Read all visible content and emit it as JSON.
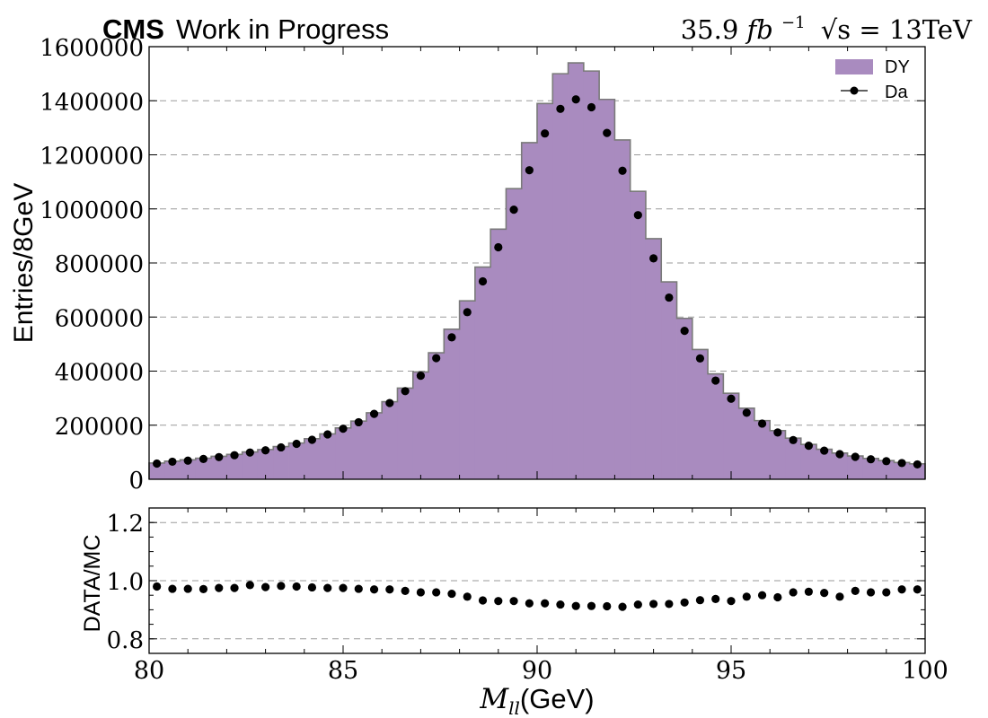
{
  "header": {
    "experiment": "CMS",
    "status": "Work in Progress",
    "lumi": "35.9",
    "lumi_unit": "fb",
    "lumi_exp": "−1",
    "energy": "√s = 13TeV"
  },
  "colors": {
    "mc_fill": "#a98bbf",
    "mc_edge": "#7a7a7a",
    "data_marker": "#000000",
    "grid": "#9a9a9a"
  },
  "chart_data": [
    {
      "type": "bar",
      "panel": "main",
      "xlabel": "M_ll(GeV)",
      "ylabel": "Entries/8GeV",
      "xlim": [
        80,
        100
      ],
      "ylim": [
        0,
        1600000
      ],
      "yticks": [
        0,
        200000,
        400000,
        600000,
        800000,
        1000000,
        1200000,
        1400000,
        1600000
      ],
      "ytick_labels": [
        "0",
        "200000",
        "400000",
        "600000",
        "800000",
        "1000000",
        "1200000",
        "1400000",
        "1600000"
      ],
      "grid": "horizontal-dashed",
      "legend": {
        "placement": "top-right",
        "entries": [
          {
            "label": "DY",
            "kind": "fill"
          },
          {
            "label": "Da",
            "kind": "marker"
          }
        ]
      },
      "bin_edges": [
        80.0,
        80.4,
        80.8,
        81.2,
        81.6,
        82.0,
        82.4,
        82.8,
        83.2,
        83.6,
        84.0,
        84.4,
        84.8,
        85.2,
        85.6,
        86.0,
        86.4,
        86.8,
        87.2,
        87.6,
        88.0,
        88.4,
        88.8,
        89.2,
        89.6,
        90.0,
        90.4,
        90.8,
        91.2,
        91.6,
        92.0,
        92.4,
        92.8,
        93.2,
        93.6,
        94.0,
        94.4,
        94.8,
        95.2,
        95.6,
        96.0,
        96.4,
        96.8,
        97.2,
        97.6,
        98.0,
        98.4,
        98.8,
        99.2,
        99.6,
        100.0
      ],
      "series": [
        {
          "name": "DY",
          "kind": "histogram",
          "values": [
            60000,
            67000,
            72000,
            78000,
            85000,
            92000,
            101000,
            110000,
            121000,
            134000,
            150000,
            168000,
            190000,
            215000,
            246000,
            287000,
            337000,
            397000,
            468000,
            555000,
            660000,
            785000,
            925000,
            1075000,
            1245000,
            1390000,
            1500000,
            1540000,
            1510000,
            1405000,
            1255000,
            1065000,
            890000,
            730000,
            595000,
            480000,
            390000,
            318000,
            263000,
            217000,
            180000,
            152000,
            129000,
            111000,
            97000,
            86000,
            77000,
            69000,
            62000,
            57000
          ]
        },
        {
          "name": "Da",
          "kind": "points",
          "x": [
            80.2,
            80.6,
            81.0,
            81.4,
            81.8,
            82.2,
            82.6,
            83.0,
            83.4,
            83.8,
            84.2,
            84.6,
            85.0,
            85.4,
            85.8,
            86.2,
            86.6,
            87.0,
            87.4,
            87.8,
            88.2,
            88.6,
            89.0,
            89.4,
            89.8,
            90.2,
            90.6,
            91.0,
            91.4,
            91.8,
            92.2,
            92.6,
            93.0,
            93.4,
            93.8,
            94.2,
            94.6,
            95.0,
            95.4,
            95.8,
            96.2,
            96.6,
            97.0,
            97.4,
            97.8,
            98.2,
            98.6,
            99.0,
            99.4,
            99.8
          ],
          "values": [
            58000,
            65000,
            69000,
            75000,
            82000,
            89000,
            99000,
            107000,
            118000,
            131000,
            146000,
            166000,
            187000,
            211000,
            242000,
            282000,
            326000,
            383000,
            448000,
            525000,
            618000,
            732000,
            858000,
            997000,
            1143000,
            1279000,
            1370000,
            1405000,
            1376000,
            1281000,
            1141000,
            977000,
            817000,
            672000,
            549000,
            447000,
            365000,
            298000,
            246000,
            206000,
            173000,
            145000,
            124000,
            106000,
            93000,
            83000,
            74000,
            67000,
            60000,
            55000
          ]
        }
      ]
    },
    {
      "type": "scatter",
      "panel": "ratio",
      "xlabel": "M_ll(GeV)",
      "ylabel": "DATA/MC",
      "xlim": [
        80,
        100
      ],
      "ylim": [
        0.75,
        1.25
      ],
      "yticks": [
        0.8,
        1.0,
        1.2
      ],
      "ytick_labels": [
        "0.8",
        "1.0",
        "1.2"
      ],
      "xticks": [
        80,
        85,
        90,
        95,
        100
      ],
      "xtick_labels": [
        "80",
        "85",
        "90",
        "95",
        "100"
      ],
      "grid": "horizontal-dashed",
      "series": [
        {
          "kind": "points",
          "x": [
            80.2,
            80.6,
            81.0,
            81.4,
            81.8,
            82.2,
            82.6,
            83.0,
            83.4,
            83.8,
            84.2,
            84.6,
            85.0,
            85.4,
            85.8,
            86.2,
            86.6,
            87.0,
            87.4,
            87.8,
            88.2,
            88.6,
            89.0,
            89.4,
            89.8,
            90.2,
            90.6,
            91.0,
            91.4,
            91.8,
            92.2,
            92.6,
            93.0,
            93.4,
            93.8,
            94.2,
            94.6,
            95.0,
            95.4,
            95.8,
            96.2,
            96.6,
            97.0,
            97.4,
            97.8,
            98.2,
            98.6,
            99.0,
            99.4,
            99.8
          ],
          "values": [
            0.98,
            0.972,
            0.972,
            0.971,
            0.975,
            0.975,
            0.985,
            0.978,
            0.982,
            0.98,
            0.977,
            0.975,
            0.975,
            0.972,
            0.97,
            0.97,
            0.965,
            0.96,
            0.96,
            0.955,
            0.945,
            0.932,
            0.93,
            0.93,
            0.922,
            0.922,
            0.918,
            0.913,
            0.913,
            0.912,
            0.91,
            0.918,
            0.92,
            0.92,
            0.925,
            0.933,
            0.937,
            0.93,
            0.945,
            0.95,
            0.943,
            0.96,
            0.962,
            0.958,
            0.945,
            0.965,
            0.96,
            0.96,
            0.97,
            0.97
          ]
        }
      ]
    }
  ]
}
